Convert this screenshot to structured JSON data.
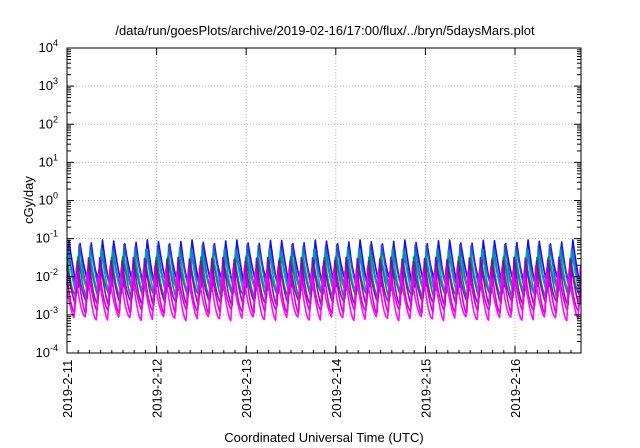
{
  "chart_data": {
    "type": "line",
    "title": "/data/run/goesPlots/archive/2019-02-16/17:00/flux/../bryn/5daysMars.plot",
    "xlabel": "Coordinated Universal Time (UTC)",
    "ylabel": "cGy/day",
    "yscale": "log",
    "ylim": [
      0.0001,
      10000
    ],
    "xlim": [
      "2019-02-11",
      "2019-02-16 17:00"
    ],
    "grid": true,
    "legend": "none",
    "x_ticks": [
      "2019-2-11",
      "2019-2-12",
      "2019-2-13",
      "2019-2-14",
      "2019-2-15",
      "2019-2-16"
    ],
    "y_ticks": [
      {
        "base": "10",
        "exp": "-4"
      },
      {
        "base": "10",
        "exp": "-3"
      },
      {
        "base": "10",
        "exp": "-2"
      },
      {
        "base": "10",
        "exp": "-1"
      },
      {
        "base": "10",
        "exp": "0"
      },
      {
        "base": "10",
        "exp": "1"
      },
      {
        "base": "10",
        "exp": "2"
      },
      {
        "base": "10",
        "exp": "3"
      },
      {
        "base": "10",
        "exp": "4"
      }
    ],
    "series_pattern": {
      "cycles_per_day": 8,
      "note_free": true,
      "series": [
        {
          "color": "#0000ff",
          "peak": 0.09,
          "trough": 0.006
        },
        {
          "color": "#3050d0",
          "peak": 0.07,
          "trough": 0.005
        },
        {
          "color": "#00a0a0",
          "peak": 0.05,
          "trough": 0.004
        },
        {
          "color": "#008060",
          "peak": 0.035,
          "trough": 0.003
        },
        {
          "color": "#8000c0",
          "peak": 0.03,
          "trough": 0.002
        },
        {
          "color": "#c000c0",
          "peak": 0.02,
          "trough": 0.0012
        },
        {
          "color": "#ff00ff",
          "peak": 0.012,
          "trough": 0.0008
        }
      ]
    }
  }
}
